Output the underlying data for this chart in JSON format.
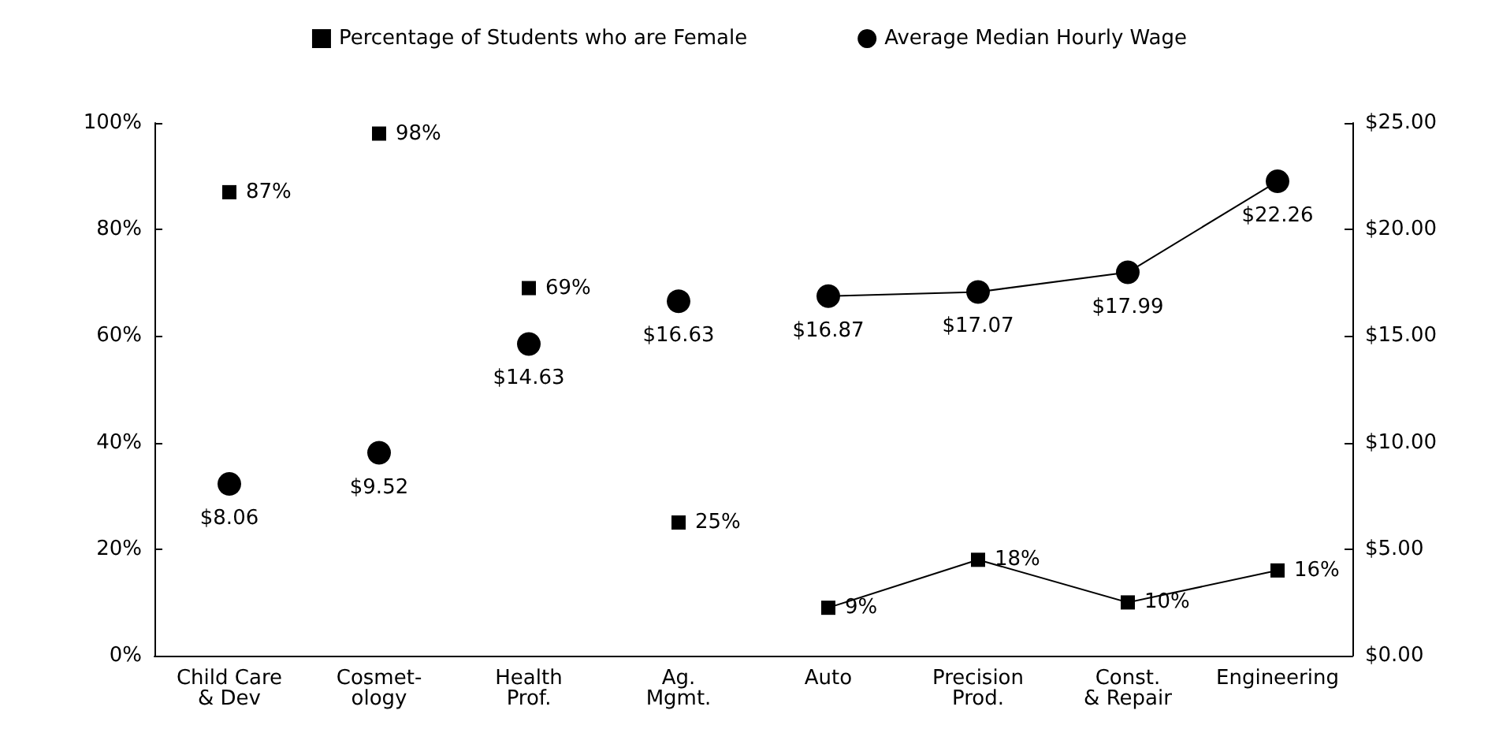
{
  "chart_data": {
    "type": "line",
    "categories": [
      "Child Care\n& Dev",
      "Cosmet-\nology",
      "Health\nProf.",
      "Ag.\nMgmt.",
      "Auto",
      "Precision\nProd.",
      "Const.\n& Repair",
      "Engineering"
    ],
    "series": [
      {
        "name": "Percentage of Students who are Female",
        "type": "scatter",
        "marker": "square",
        "color": "#000000",
        "values": [
          87,
          98,
          69,
          25,
          null,
          null,
          null,
          null
        ],
        "value_labels": [
          "87%",
          "98%",
          "69%",
          "25%",
          null,
          null,
          null,
          null
        ]
      },
      {
        "marker": "square",
        "color": "#000000",
        "values": [
          null,
          null,
          null,
          null,
          9,
          18,
          10,
          16
        ],
        "value_labels": [
          null,
          null,
          null,
          null,
          "9%",
          "18%",
          "10%",
          "16%"
        ]
      },
      {
        "name": "Average Median Hourly Wage",
        "type": "scatter",
        "marker": "circle",
        "axis": "y2",
        "color": "#000000",
        "values": [
          8.06,
          9.52,
          14.63,
          16.63,
          null,
          null,
          null,
          null
        ],
        "value_labels": [
          "$8.06",
          "$9.52",
          "$14.63",
          "$16.63",
          null,
          null,
          null,
          null
        ]
      },
      {
        "marker": "circle",
        "axis": "y2",
        "color": "#000000",
        "values": [
          null,
          null,
          null,
          null,
          16.87,
          17.07,
          17.99,
          22.26
        ],
        "value_labels": [
          null,
          null,
          null,
          null,
          "$16.87",
          "$17.07",
          "$17.99",
          "$22.26"
        ]
      }
    ],
    "ylim": [
      0,
      100
    ],
    "yticks": [
      {
        "value": 0,
        "label": "0%"
      },
      {
        "value": 20,
        "label": "20%"
      },
      {
        "value": 40,
        "label": "40%"
      },
      {
        "value": 60,
        "label": "60%"
      },
      {
        "value": 80,
        "label": "80%"
      },
      {
        "value": 100,
        "label": "100%"
      }
    ],
    "y2lim": [
      0,
      25
    ],
    "y2ticks": [
      {
        "value": 0,
        "label": "$0.00"
      },
      {
        "value": 5,
        "label": "$5.00"
      },
      {
        "value": 10,
        "label": "$10.00"
      },
      {
        "value": 15,
        "label": "$15.00"
      },
      {
        "value": 20,
        "label": "$20.00"
      },
      {
        "value": 25,
        "label": "$25.00"
      }
    ],
    "legend": "top",
    "grid": false
  }
}
